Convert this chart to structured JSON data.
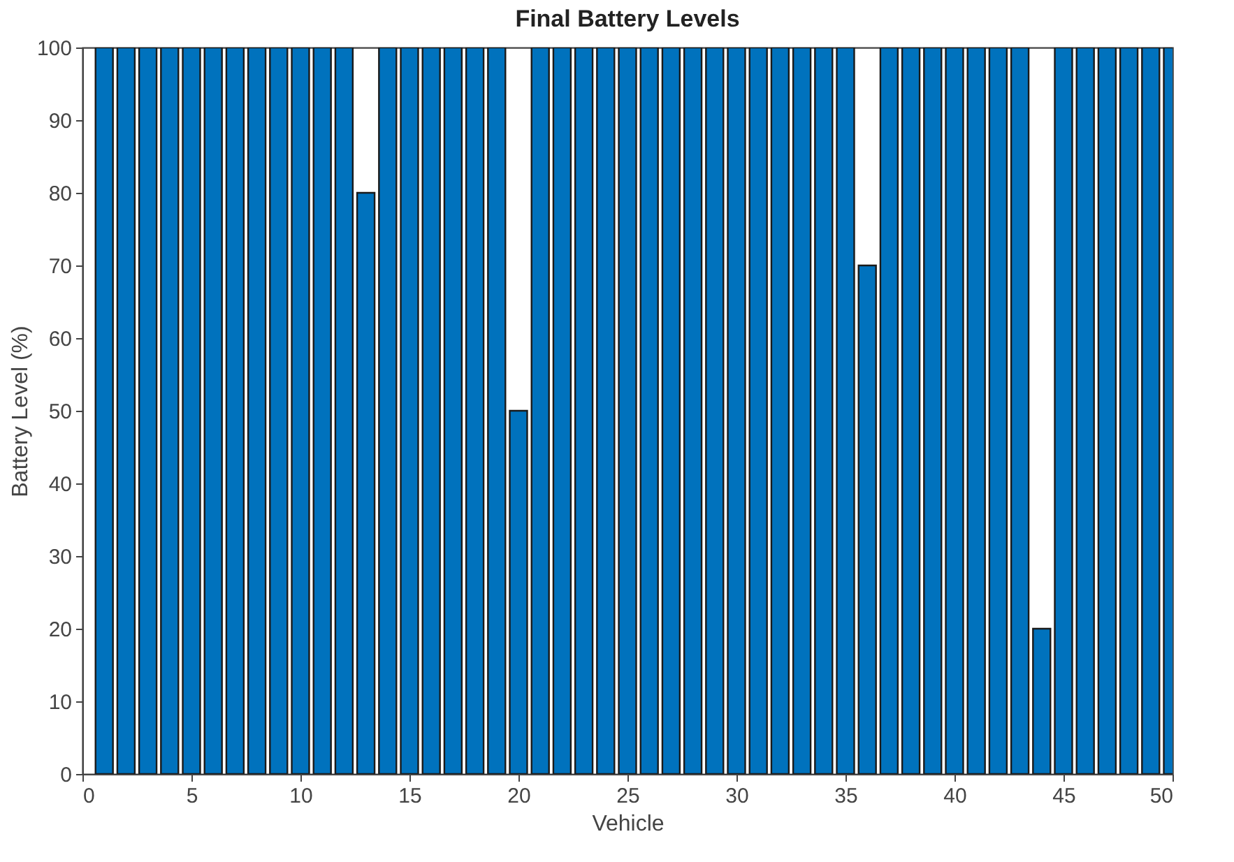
{
  "chart_data": {
    "type": "bar",
    "title": "Final Battery Levels",
    "xlabel": "Vehicle",
    "ylabel": "Battery Level (%)",
    "x": [
      1,
      2,
      3,
      4,
      5,
      6,
      7,
      8,
      9,
      10,
      11,
      12,
      13,
      14,
      15,
      16,
      17,
      18,
      19,
      20,
      21,
      22,
      23,
      24,
      25,
      26,
      27,
      28,
      29,
      30,
      31,
      32,
      33,
      34,
      35,
      36,
      37,
      38,
      39,
      40,
      41,
      42,
      43,
      44,
      45,
      46,
      47,
      48,
      49,
      50
    ],
    "values": [
      100,
      100,
      100,
      100,
      100,
      100,
      100,
      100,
      100,
      100,
      100,
      100,
      80,
      100,
      100,
      100,
      100,
      100,
      100,
      50,
      100,
      100,
      100,
      100,
      100,
      100,
      100,
      100,
      100,
      100,
      100,
      100,
      100,
      100,
      100,
      70,
      100,
      100,
      100,
      100,
      100,
      100,
      100,
      20,
      100,
      100,
      100,
      100,
      100,
      100
    ],
    "color": "#0072bd",
    "xlim": [
      0,
      50
    ],
    "xticks": [
      0,
      5,
      10,
      15,
      20,
      25,
      30,
      35,
      40,
      45,
      50
    ],
    "ylim": [
      0,
      100
    ],
    "yticks": [
      0,
      10,
      20,
      30,
      40,
      50,
      60,
      70,
      80,
      90,
      100
    ],
    "grid": false
  }
}
